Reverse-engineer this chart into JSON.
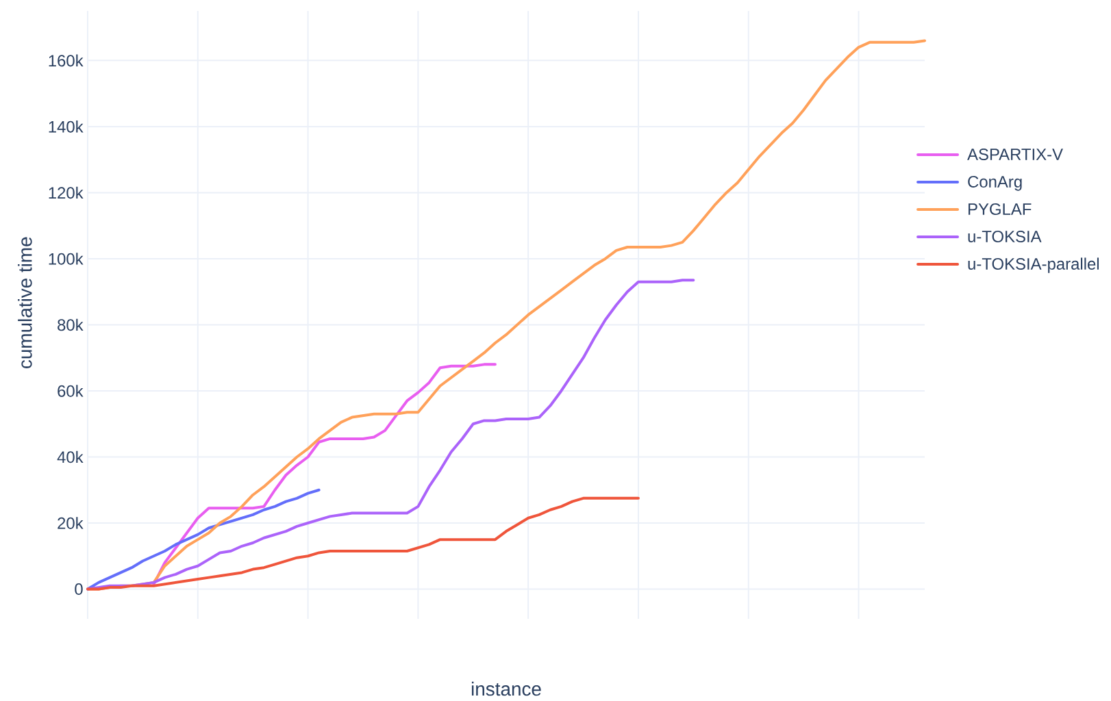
{
  "chart_data": {
    "type": "line",
    "xlabel": "instance",
    "ylabel": "cumulative time",
    "categories": [
      null,
      null,
      null,
      null,
      null,
      null,
      null,
      null,
      null,
      null,
      null,
      null,
      null,
      null,
      null,
      null,
      null,
      null,
      null,
      null,
      null,
      null,
      null,
      null,
      null,
      null,
      null,
      null,
      null,
      null,
      null,
      null,
      null,
      null,
      null,
      null,
      null,
      null,
      null,
      null,
      null,
      null,
      null,
      null,
      null,
      null,
      null,
      null,
      null,
      null,
      null,
      null,
      null,
      null,
      null,
      null,
      null,
      null,
      null,
      null,
      null,
      null,
      null,
      null,
      null,
      null,
      null,
      null,
      null,
      null,
      null,
      null,
      null,
      null,
      null,
      null,
      null
    ],
    "ylim": [
      -9000,
      175000
    ],
    "yticks": [
      0,
      {
        "value": 20000,
        "label": "20k"
      },
      {
        "value": 40000,
        "label": "40k"
      },
      {
        "value": 60000,
        "label": "60k"
      },
      {
        "value": 80000,
        "label": "80k"
      },
      {
        "value": 100000,
        "label": "100k"
      },
      {
        "value": 120000,
        "label": "120k"
      },
      {
        "value": 140000,
        "label": "140k"
      },
      {
        "value": 160000,
        "label": "160k"
      }
    ],
    "grid": true,
    "legend": "right",
    "series": [
      {
        "name": "ASPARTIX-V",
        "color": "#e85ef0",
        "values": [
          null,
          null,
          null,
          null,
          null,
          null,
          1500,
          8000,
          12500,
          17000,
          21500,
          24500,
          24500,
          24500,
          24500,
          24500,
          25000,
          30000,
          34500,
          37500,
          40000,
          44500,
          45500,
          45500,
          45500,
          45500,
          46000,
          48000,
          52500,
          57000,
          59500,
          62500,
          67000,
          67500,
          67500,
          67500,
          68000,
          68000,
          null,
          null,
          null,
          null,
          null,
          null,
          null,
          null,
          null,
          null,
          null,
          null,
          null,
          null,
          null,
          null,
          null,
          null,
          null,
          null,
          null,
          null,
          null,
          null,
          null,
          null,
          null,
          null,
          null,
          null,
          null,
          null,
          null,
          null,
          null,
          null,
          null,
          null,
          null
        ]
      },
      {
        "name": "ConArg",
        "color": "#636efa",
        "values": [
          0,
          2000,
          3500,
          5000,
          6500,
          8500,
          10000,
          11500,
          13500,
          15000,
          16500,
          18500,
          19500,
          20500,
          21500,
          22500,
          24000,
          25000,
          26500,
          27500,
          29000,
          30000,
          null,
          null,
          null,
          null,
          null,
          null,
          null,
          null,
          null,
          null,
          null,
          null,
          null,
          null,
          null,
          null,
          null,
          null,
          null,
          null,
          null,
          null,
          null,
          null,
          null,
          null,
          null,
          null,
          null,
          null,
          null,
          null,
          null,
          null,
          null,
          null,
          null,
          null,
          null,
          null,
          null,
          null,
          null,
          null,
          null,
          null,
          null,
          null,
          null,
          null,
          null,
          null,
          null,
          null,
          null
        ]
      },
      {
        "name": "PYGLAF",
        "color": "#ffa15a",
        "values": [
          0,
          0,
          500,
          1000,
          1000,
          1500,
          2000,
          7000,
          10000,
          13000,
          15000,
          17000,
          20000,
          22000,
          25000,
          28500,
          31000,
          34000,
          37000,
          40000,
          42500,
          45500,
          48000,
          50500,
          52000,
          52500,
          53000,
          53000,
          53000,
          53500,
          53500,
          57500,
          61500,
          64000,
          66500,
          69000,
          71500,
          74500,
          77000,
          80000,
          83000,
          85500,
          88000,
          90500,
          93000,
          95500,
          98000,
          100000,
          102500,
          103500,
          103500,
          103500,
          103500,
          104000,
          105000,
          108500,
          112500,
          116500,
          120000,
          123000,
          127000,
          131000,
          134500,
          138000,
          141000,
          145000,
          149500,
          154000,
          157500,
          161000,
          164000,
          165500,
          165500,
          165500,
          165500,
          165500,
          166000
        ]
      },
      {
        "name": "u-TOKSIA",
        "color": "#ab63fa",
        "values": [
          0,
          500,
          1000,
          1000,
          1000,
          1500,
          2000,
          3500,
          4500,
          6000,
          7000,
          9000,
          11000,
          11500,
          13000,
          14000,
          15500,
          16500,
          17500,
          19000,
          20000,
          21000,
          22000,
          22500,
          23000,
          23000,
          23000,
          23000,
          23000,
          23000,
          25000,
          31000,
          36000,
          41500,
          45500,
          50000,
          51000,
          51000,
          51500,
          51500,
          51500,
          52000,
          55500,
          60000,
          65000,
          70000,
          76000,
          81500,
          86000,
          90000,
          93000,
          93000,
          93000,
          93000,
          93500,
          93500,
          null,
          null,
          null,
          null,
          null,
          null,
          null,
          null,
          null,
          null,
          null,
          null,
          null,
          null,
          null,
          null,
          null,
          null,
          null,
          null,
          null
        ]
      },
      {
        "name": "u-TOKSIA-parallel",
        "color": "#ef553b",
        "values": [
          0,
          0,
          500,
          500,
          1000,
          1000,
          1000,
          1500,
          2000,
          2500,
          3000,
          3500,
          4000,
          4500,
          5000,
          6000,
          6500,
          7500,
          8500,
          9500,
          10000,
          11000,
          11500,
          11500,
          11500,
          11500,
          11500,
          11500,
          11500,
          11500,
          12500,
          13500,
          15000,
          15000,
          15000,
          15000,
          15000,
          15000,
          17500,
          19500,
          21500,
          22500,
          24000,
          25000,
          26500,
          27500,
          27500,
          27500,
          27500,
          27500,
          27500,
          null,
          null,
          null,
          null,
          null,
          null,
          null,
          null,
          null,
          null,
          null,
          null,
          null,
          null,
          null,
          null,
          null,
          null,
          null,
          null,
          null,
          null,
          null,
          null,
          null,
          null
        ]
      }
    ]
  }
}
